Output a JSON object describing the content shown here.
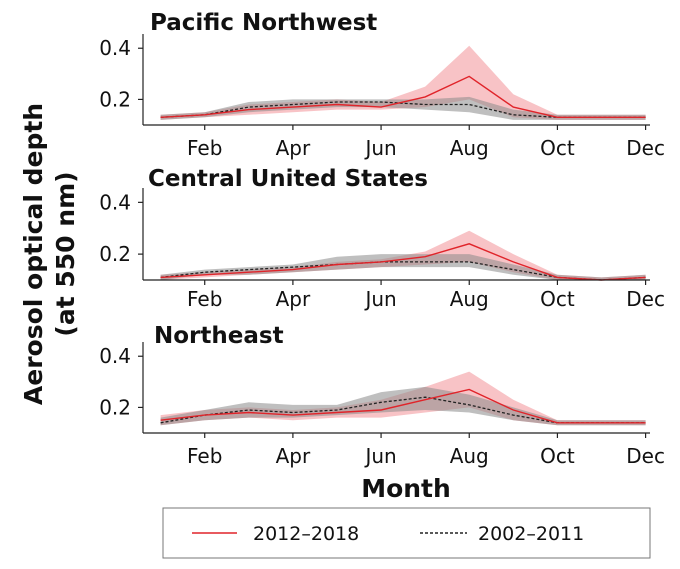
{
  "chart_data": {
    "type": "line",
    "xlabel": "Month",
    "ylabel": [
      "Aerosol optical depth",
      "(at 550 nm)"
    ],
    "x_tick_labels": [
      "Feb",
      "Apr",
      "Jun",
      "Aug",
      "Oct",
      "Dec"
    ],
    "x_tick_months": [
      2,
      4,
      6,
      8,
      10,
      12
    ],
    "x_months": [
      1,
      2,
      3,
      4,
      5,
      6,
      7,
      8,
      9,
      10,
      11,
      12
    ],
    "y_tick_labels": [
      "0.2",
      "0.4"
    ],
    "y_tick_values": [
      0.2,
      0.4
    ],
    "ylim": [
      0.1,
      0.44
    ],
    "xlim": [
      0.6,
      12.1
    ],
    "grid": false,
    "legend": {
      "placement": "bottom",
      "entries": [
        {
          "label": "2012–2018",
          "color": "#e0242a",
          "style": "solid"
        },
        {
          "label": "2002–2011",
          "color": "#222222",
          "style": "dashed"
        }
      ]
    },
    "colors": {
      "recent_line": "#e0242a",
      "recent_band": "#f4a3a8",
      "earlier_line": "#222222",
      "earlier_band": "#8a8a8a"
    },
    "panels": [
      {
        "title": "Pacific Northwest",
        "series": [
          {
            "name": "2012–2018",
            "values": [
              0.13,
              0.14,
              0.16,
              0.17,
              0.18,
              0.17,
              0.21,
              0.29,
              0.17,
              0.13,
              0.13,
              0.13
            ],
            "lower": [
              0.12,
              0.13,
              0.14,
              0.15,
              0.16,
              0.16,
              0.17,
              0.2,
              0.13,
              0.12,
              0.12,
              0.12
            ],
            "upper": [
              0.14,
              0.15,
              0.18,
              0.19,
              0.2,
              0.19,
              0.25,
              0.41,
              0.22,
              0.14,
              0.14,
              0.14
            ]
          },
          {
            "name": "2002–2011",
            "values": [
              0.13,
              0.14,
              0.17,
              0.18,
              0.19,
              0.19,
              0.18,
              0.18,
              0.14,
              0.13,
              0.13,
              0.13
            ],
            "lower": [
              0.12,
              0.13,
              0.15,
              0.16,
              0.17,
              0.17,
              0.16,
              0.15,
              0.12,
              0.12,
              0.12,
              0.12
            ],
            "upper": [
              0.14,
              0.15,
              0.19,
              0.2,
              0.2,
              0.2,
              0.2,
              0.21,
              0.16,
              0.14,
              0.14,
              0.14
            ]
          }
        ]
      },
      {
        "title": "Central United States",
        "series": [
          {
            "name": "2012–2018",
            "values": [
              0.11,
              0.12,
              0.13,
              0.14,
              0.16,
              0.17,
              0.19,
              0.24,
              0.17,
              0.11,
              0.1,
              0.11
            ],
            "lower": [
              0.1,
              0.11,
              0.12,
              0.13,
              0.14,
              0.15,
              0.16,
              0.17,
              0.13,
              0.1,
              0.1,
              0.1
            ],
            "upper": [
              0.12,
              0.13,
              0.14,
              0.15,
              0.17,
              0.18,
              0.21,
              0.29,
              0.2,
              0.12,
              0.11,
              0.12
            ]
          },
          {
            "name": "2002–2011",
            "values": [
              0.11,
              0.13,
              0.14,
              0.15,
              0.16,
              0.17,
              0.17,
              0.17,
              0.14,
              0.11,
              0.1,
              0.11
            ],
            "lower": [
              0.1,
              0.12,
              0.12,
              0.13,
              0.14,
              0.15,
              0.15,
              0.15,
              0.12,
              0.1,
              0.1,
              0.1
            ],
            "upper": [
              0.12,
              0.14,
              0.15,
              0.16,
              0.19,
              0.2,
              0.2,
              0.2,
              0.16,
              0.12,
              0.11,
              0.12
            ]
          }
        ]
      },
      {
        "title": "Northeast",
        "series": [
          {
            "name": "2012–2018",
            "values": [
              0.15,
              0.17,
              0.18,
              0.17,
              0.18,
              0.19,
              0.23,
              0.27,
              0.19,
              0.14,
              0.14,
              0.14
            ],
            "lower": [
              0.13,
              0.15,
              0.16,
              0.15,
              0.16,
              0.16,
              0.18,
              0.2,
              0.15,
              0.13,
              0.13,
              0.13
            ],
            "upper": [
              0.17,
              0.19,
              0.2,
              0.19,
              0.2,
              0.23,
              0.28,
              0.34,
              0.23,
              0.15,
              0.15,
              0.15
            ]
          },
          {
            "name": "2002–2011",
            "values": [
              0.14,
              0.17,
              0.19,
              0.18,
              0.19,
              0.22,
              0.24,
              0.21,
              0.17,
              0.14,
              0.14,
              0.14
            ],
            "lower": [
              0.13,
              0.15,
              0.16,
              0.16,
              0.17,
              0.18,
              0.19,
              0.18,
              0.15,
              0.13,
              0.13,
              0.13
            ],
            "upper": [
              0.16,
              0.19,
              0.22,
              0.21,
              0.21,
              0.26,
              0.28,
              0.25,
              0.2,
              0.15,
              0.15,
              0.15
            ]
          }
        ]
      }
    ]
  }
}
